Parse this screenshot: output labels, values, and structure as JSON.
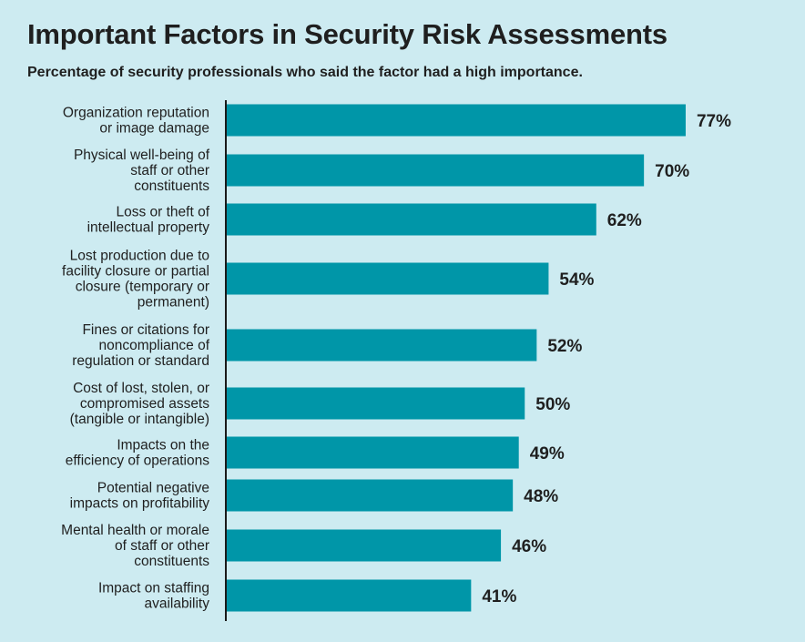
{
  "chart_data": {
    "type": "bar",
    "orientation": "horizontal",
    "title": "Important Factors in Security Risk Assessments",
    "subtitle": "Percentage of security professionals who said the factor had a high importance.",
    "xlabel": "",
    "ylabel": "",
    "xlim": [
      0,
      100
    ],
    "grid": false,
    "bar_color": "#0096a8",
    "background_color": "#cdebf1",
    "categories": [
      [
        "Organization reputation",
        "or image damage"
      ],
      [
        "Physical well-being of",
        "staff or other",
        "constituents"
      ],
      [
        "Loss or theft of",
        "intellectual property"
      ],
      [
        "Lost production due to",
        "facility closure or partial",
        "closure (temporary or",
        "permanent)"
      ],
      [
        "Fines or citations for",
        "noncompliance of",
        "regulation or standard"
      ],
      [
        "Cost of lost, stolen, or",
        "compromised assets",
        "(tangible or intangible)"
      ],
      [
        "Impacts on the",
        "efficiency of operations"
      ],
      [
        "Potential negative",
        "impacts on profitability"
      ],
      [
        "Mental health or morale",
        "of staff or other",
        "constituents"
      ],
      [
        "Impact on staffing",
        "availability"
      ]
    ],
    "values": [
      77,
      70,
      62,
      54,
      52,
      50,
      49,
      48,
      46,
      41
    ],
    "value_labels": [
      "77%",
      "70%",
      "62%",
      "54%",
      "52%",
      "50%",
      "49%",
      "48%",
      "46%",
      "41%"
    ]
  }
}
